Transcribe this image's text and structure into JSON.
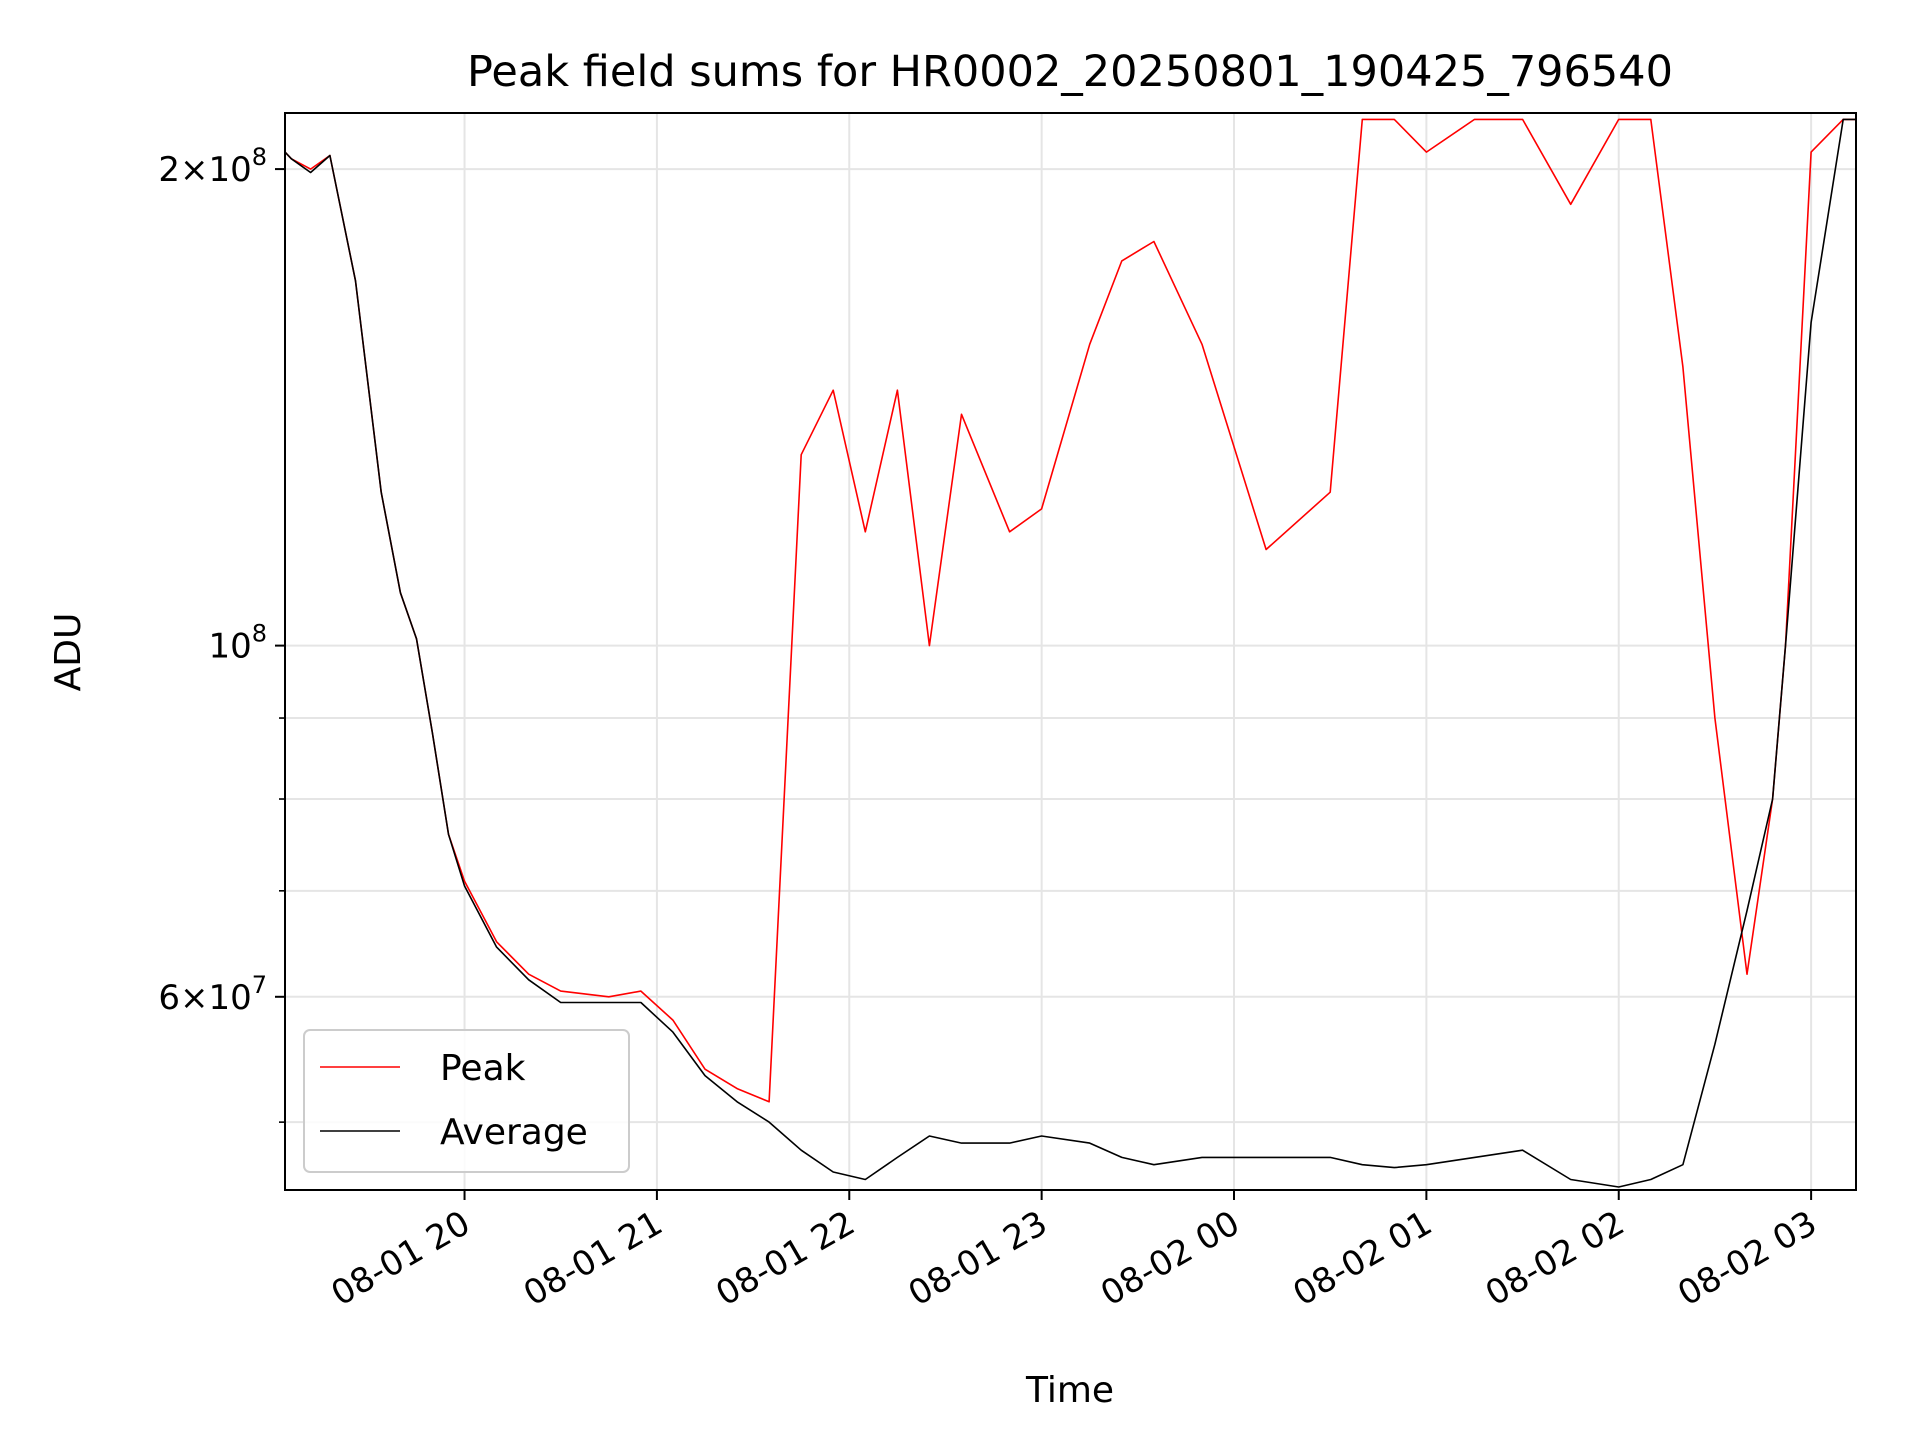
{
  "chart_data": {
    "type": "line",
    "title": "Peak field sums for HR0002_20250801_190425_796540",
    "xlabel": "Time",
    "ylabel": "ADU",
    "y_scale": "log",
    "x_range": [
      "2025-08-01 19:04",
      "2025-08-02 03:14"
    ],
    "ylim": [
      45300000,
      217000000
    ],
    "grid": true,
    "legend_position": "lower-left",
    "x_ticks": [
      {
        "t": "2025-08-01 20:00",
        "label": "08-01 20"
      },
      {
        "t": "2025-08-01 21:00",
        "label": "08-01 21"
      },
      {
        "t": "2025-08-01 22:00",
        "label": "08-01 22"
      },
      {
        "t": "2025-08-01 23:00",
        "label": "08-01 23"
      },
      {
        "t": "2025-08-02 00:00",
        "label": "08-02 00"
      },
      {
        "t": "2025-08-02 01:00",
        "label": "08-02 01"
      },
      {
        "t": "2025-08-02 02:00",
        "label": "08-02 02"
      },
      {
        "t": "2025-08-02 03:00",
        "label": "08-02 03"
      }
    ],
    "y_ticks_major": [
      {
        "v": 60000000,
        "mant": "6",
        "exp": "7"
      },
      {
        "v": 100000000,
        "mant": "",
        "exp": "8"
      },
      {
        "v": 200000000,
        "mant": "2",
        "exp": "8"
      }
    ],
    "y_ticks_minor": [
      50000000,
      70000000,
      80000000,
      90000000
    ],
    "series": [
      {
        "name": "Peak",
        "color": "#ff0000",
        "points": [
          [
            "2025-08-01 19:04",
            205000000
          ],
          [
            "2025-08-01 19:06",
            203000000
          ],
          [
            "2025-08-01 19:12",
            200000000
          ],
          [
            "2025-08-01 19:18",
            204000000
          ],
          [
            "2025-08-01 19:26",
            170000000
          ],
          [
            "2025-08-01 19:34",
            125000000
          ],
          [
            "2025-08-01 19:40",
            108000000
          ],
          [
            "2025-08-01 19:45",
            101000000
          ],
          [
            "2025-08-01 19:50",
            88000000
          ],
          [
            "2025-08-01 19:55",
            76000000
          ],
          [
            "2025-08-01 20:00",
            71000000
          ],
          [
            "2025-08-01 20:10",
            65000000
          ],
          [
            "2025-08-01 20:20",
            62000000
          ],
          [
            "2025-08-01 20:30",
            60500000
          ],
          [
            "2025-08-01 20:45",
            60000000
          ],
          [
            "2025-08-01 20:55",
            60500000
          ],
          [
            "2025-08-01 21:05",
            58000000
          ],
          [
            "2025-08-01 21:15",
            54000000
          ],
          [
            "2025-08-01 21:25",
            52500000
          ],
          [
            "2025-08-01 21:35",
            51500000
          ],
          [
            "2025-08-01 21:45",
            132000000
          ],
          [
            "2025-08-01 21:55",
            145000000
          ],
          [
            "2025-08-01 22:05",
            118000000
          ],
          [
            "2025-08-01 22:15",
            145000000
          ],
          [
            "2025-08-01 22:25",
            100000000
          ],
          [
            "2025-08-01 22:35",
            140000000
          ],
          [
            "2025-08-01 22:50",
            118000000
          ],
          [
            "2025-08-01 23:00",
            122000000
          ],
          [
            "2025-08-01 23:15",
            155000000
          ],
          [
            "2025-08-01 23:25",
            175000000
          ],
          [
            "2025-08-01 23:35",
            180000000
          ],
          [
            "2025-08-01 23:50",
            155000000
          ],
          [
            "2025-08-02 00:10",
            115000000
          ],
          [
            "2025-08-02 00:30",
            125000000
          ],
          [
            "2025-08-02 00:40",
            215000000
          ],
          [
            "2025-08-02 00:50",
            215000000
          ],
          [
            "2025-08-02 01:00",
            205000000
          ],
          [
            "2025-08-02 01:15",
            215000000
          ],
          [
            "2025-08-02 01:30",
            215000000
          ],
          [
            "2025-08-02 01:45",
            190000000
          ],
          [
            "2025-08-02 02:00",
            215000000
          ],
          [
            "2025-08-02 02:10",
            215000000
          ],
          [
            "2025-08-02 02:20",
            150000000
          ],
          [
            "2025-08-02 02:30",
            90000000
          ],
          [
            "2025-08-02 02:40",
            62000000
          ],
          [
            "2025-08-02 02:48",
            80000000
          ],
          [
            "2025-08-02 02:52",
            100000000
          ],
          [
            "2025-08-02 03:00",
            205000000
          ],
          [
            "2025-08-02 03:10",
            215000000
          ],
          [
            "2025-08-02 03:14",
            215000000
          ]
        ]
      },
      {
        "name": "Average",
        "color": "#000000",
        "points": [
          [
            "2025-08-01 19:04",
            205000000
          ],
          [
            "2025-08-01 19:06",
            203000000
          ],
          [
            "2025-08-01 19:12",
            199000000
          ],
          [
            "2025-08-01 19:18",
            204000000
          ],
          [
            "2025-08-01 19:26",
            170000000
          ],
          [
            "2025-08-01 19:34",
            125000000
          ],
          [
            "2025-08-01 19:40",
            108000000
          ],
          [
            "2025-08-01 19:45",
            101000000
          ],
          [
            "2025-08-01 19:50",
            88000000
          ],
          [
            "2025-08-01 19:55",
            76000000
          ],
          [
            "2025-08-01 20:00",
            70500000
          ],
          [
            "2025-08-01 20:10",
            64500000
          ],
          [
            "2025-08-01 20:20",
            61500000
          ],
          [
            "2025-08-01 20:30",
            59500000
          ],
          [
            "2025-08-01 20:45",
            59500000
          ],
          [
            "2025-08-01 20:55",
            59500000
          ],
          [
            "2025-08-01 21:05",
            57000000
          ],
          [
            "2025-08-01 21:15",
            53500000
          ],
          [
            "2025-08-01 21:25",
            51500000
          ],
          [
            "2025-08-01 21:35",
            50000000
          ],
          [
            "2025-08-01 21:45",
            48000000
          ],
          [
            "2025-08-01 21:55",
            46500000
          ],
          [
            "2025-08-01 22:05",
            46000000
          ],
          [
            "2025-08-01 22:15",
            47500000
          ],
          [
            "2025-08-01 22:25",
            49000000
          ],
          [
            "2025-08-01 22:35",
            48500000
          ],
          [
            "2025-08-01 22:50",
            48500000
          ],
          [
            "2025-08-01 23:00",
            49000000
          ],
          [
            "2025-08-01 23:15",
            48500000
          ],
          [
            "2025-08-01 23:25",
            47500000
          ],
          [
            "2025-08-01 23:35",
            47000000
          ],
          [
            "2025-08-01 23:50",
            47500000
          ],
          [
            "2025-08-02 00:10",
            47500000
          ],
          [
            "2025-08-02 00:30",
            47500000
          ],
          [
            "2025-08-02 00:40",
            47000000
          ],
          [
            "2025-08-02 00:50",
            46800000
          ],
          [
            "2025-08-02 01:00",
            47000000
          ],
          [
            "2025-08-02 01:15",
            47500000
          ],
          [
            "2025-08-02 01:30",
            48000000
          ],
          [
            "2025-08-02 01:45",
            46000000
          ],
          [
            "2025-08-02 02:00",
            45500000
          ],
          [
            "2025-08-02 02:10",
            46000000
          ],
          [
            "2025-08-02 02:20",
            47000000
          ],
          [
            "2025-08-02 02:30",
            56000000
          ],
          [
            "2025-08-02 02:40",
            68000000
          ],
          [
            "2025-08-02 02:48",
            80000000
          ],
          [
            "2025-08-02 02:52",
            100000000
          ],
          [
            "2025-08-02 03:00",
            160000000
          ],
          [
            "2025-08-02 03:10",
            215000000
          ],
          [
            "2025-08-02 03:14",
            215000000
          ]
        ]
      }
    ]
  }
}
